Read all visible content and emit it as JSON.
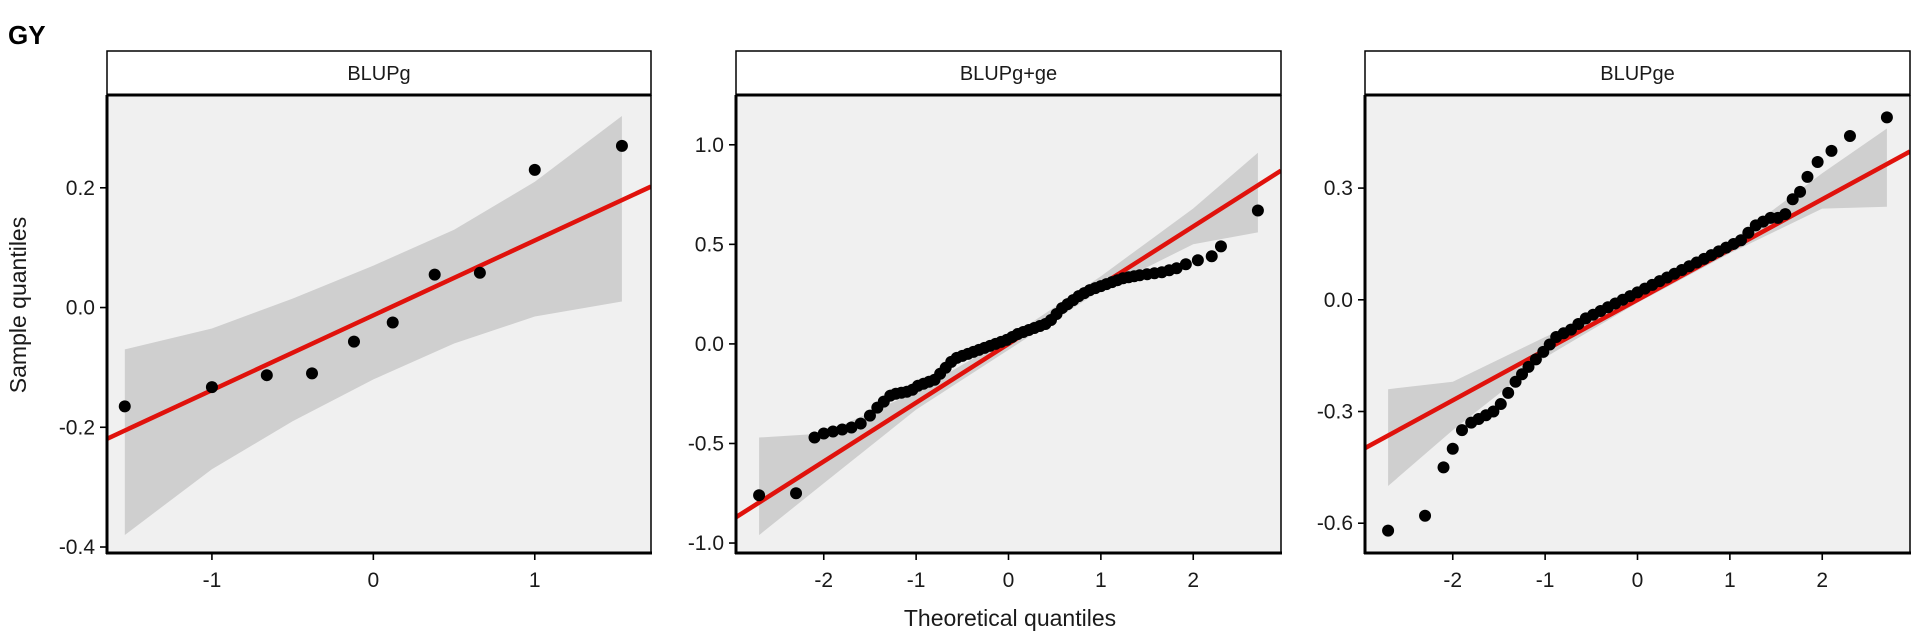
{
  "figure_title": "GY",
  "x_axis_title": "Theoretical quantiles",
  "y_axis_title": "Sample quantiles",
  "colors": {
    "panel_background": "#f0f0f0",
    "confidence_band": "#cfcfcf",
    "reference_line": "#e0120c",
    "points": "#000000"
  },
  "chart_data": [
    {
      "type": "scatter",
      "title": "BLUPg",
      "xlim": [
        -1.65,
        1.72
      ],
      "ylim": [
        -0.41,
        0.355
      ],
      "x_ticks": [
        -1,
        0,
        1
      ],
      "y_ticks": [
        -0.4,
        -0.2,
        0.0,
        0.2
      ],
      "x_tick_labels": [
        "-1",
        "0",
        "1"
      ],
      "y_tick_labels": [
        "-0.4",
        "-0.2",
        "0.0",
        "0.2"
      ],
      "points": {
        "x": [
          -1.54,
          -1.0,
          -0.66,
          -0.38,
          -0.12,
          0.12,
          0.38,
          0.66,
          1.0,
          1.54
        ],
        "y": [
          -0.165,
          -0.133,
          -0.113,
          -0.11,
          -0.057,
          -0.025,
          0.055,
          0.058,
          0.23,
          0.27
        ]
      },
      "line": {
        "slope": 0.125,
        "intercept": -0.013
      },
      "band": {
        "x": [
          -1.54,
          -1.0,
          -0.5,
          0.0,
          0.5,
          1.0,
          1.54
        ],
        "lower": [
          -0.38,
          -0.27,
          -0.19,
          -0.12,
          -0.06,
          -0.015,
          0.01
        ],
        "upper": [
          -0.07,
          -0.035,
          0.015,
          0.07,
          0.13,
          0.21,
          0.32
        ]
      }
    },
    {
      "type": "scatter",
      "title": "BLUPg+ge",
      "xlim": [
        -2.95,
        2.95
      ],
      "ylim": [
        -1.05,
        1.25
      ],
      "x_ticks": [
        -2,
        -1,
        0,
        1,
        2
      ],
      "y_ticks": [
        -1.0,
        -0.5,
        0.0,
        0.5,
        1.0
      ],
      "x_tick_labels": [
        "-2",
        "-1",
        "0",
        "1",
        "2"
      ],
      "y_tick_labels": [
        "-1.0",
        "-0.5",
        "0.0",
        "0.5",
        "1.0"
      ],
      "points": {
        "x": [
          -2.7,
          -2.3,
          -2.1,
          -2.0,
          -1.9,
          -1.8,
          -1.7,
          -1.6,
          -1.5,
          -1.42,
          -1.35,
          -1.28,
          -1.22,
          -1.16,
          -1.1,
          -1.04,
          -0.98,
          -0.92,
          -0.86,
          -0.8,
          -0.74,
          -0.68,
          -0.62,
          -0.56,
          -0.5,
          -0.44,
          -0.38,
          -0.32,
          -0.26,
          -0.2,
          -0.14,
          -0.08,
          -0.02,
          0.04,
          0.1,
          0.16,
          0.22,
          0.28,
          0.34,
          0.4,
          0.46,
          0.52,
          0.58,
          0.64,
          0.7,
          0.76,
          0.82,
          0.88,
          0.94,
          1.0,
          1.06,
          1.12,
          1.18,
          1.24,
          1.3,
          1.36,
          1.42,
          1.5,
          1.58,
          1.66,
          1.74,
          1.82,
          1.92,
          2.05,
          2.2,
          2.3,
          2.7
        ],
        "y": [
          -0.76,
          -0.75,
          -0.47,
          -0.45,
          -0.44,
          -0.43,
          -0.42,
          -0.4,
          -0.36,
          -0.32,
          -0.29,
          -0.26,
          -0.25,
          -0.245,
          -0.24,
          -0.23,
          -0.21,
          -0.2,
          -0.19,
          -0.18,
          -0.15,
          -0.12,
          -0.09,
          -0.07,
          -0.06,
          -0.05,
          -0.04,
          -0.03,
          -0.02,
          -0.01,
          0.0,
          0.01,
          0.02,
          0.035,
          0.05,
          0.06,
          0.07,
          0.08,
          0.09,
          0.1,
          0.12,
          0.15,
          0.18,
          0.2,
          0.22,
          0.24,
          0.255,
          0.27,
          0.28,
          0.29,
          0.3,
          0.31,
          0.32,
          0.33,
          0.335,
          0.34,
          0.345,
          0.35,
          0.355,
          0.36,
          0.37,
          0.38,
          0.4,
          0.42,
          0.44,
          0.49,
          0.67
        ]
      },
      "line": {
        "slope": 0.295,
        "intercept": 0.0
      },
      "band": {
        "x": [
          -2.7,
          -2.0,
          -1.0,
          0.0,
          1.0,
          2.0,
          2.7
        ],
        "lower": [
          -0.96,
          -0.7,
          -0.33,
          -0.03,
          0.27,
          0.5,
          0.56
        ],
        "upper": [
          -0.47,
          -0.45,
          -0.24,
          0.03,
          0.34,
          0.68,
          0.96
        ]
      }
    },
    {
      "type": "scatter",
      "title": "BLUPge",
      "xlim": [
        -2.95,
        2.95
      ],
      "ylim": [
        -0.68,
        0.55
      ],
      "x_ticks": [
        -2,
        -1,
        0,
        1,
        2
      ],
      "y_ticks": [
        -0.6,
        -0.3,
        0.0,
        0.3
      ],
      "x_tick_labels": [
        "-2",
        "-1",
        "0",
        "1",
        "2"
      ],
      "y_tick_labels": [
        "-0.6",
        "-0.3",
        "0.0",
        "0.3"
      ],
      "points": {
        "x": [
          -2.7,
          -2.3,
          -2.1,
          -2.0,
          -1.9,
          -1.8,
          -1.72,
          -1.64,
          -1.56,
          -1.48,
          -1.4,
          -1.32,
          -1.25,
          -1.18,
          -1.1,
          -1.02,
          -0.95,
          -0.88,
          -0.8,
          -0.72,
          -0.64,
          -0.56,
          -0.48,
          -0.4,
          -0.32,
          -0.24,
          -0.16,
          -0.08,
          0.0,
          0.08,
          0.16,
          0.24,
          0.32,
          0.4,
          0.48,
          0.56,
          0.64,
          0.72,
          0.8,
          0.88,
          0.96,
          1.04,
          1.12,
          1.2,
          1.28,
          1.36,
          1.44,
          1.52,
          1.6,
          1.68,
          1.76,
          1.84,
          1.95,
          2.1,
          2.3,
          2.7
        ],
        "y": [
          -0.62,
          -0.58,
          -0.45,
          -0.4,
          -0.35,
          -0.33,
          -0.32,
          -0.31,
          -0.3,
          -0.28,
          -0.25,
          -0.22,
          -0.2,
          -0.18,
          -0.16,
          -0.14,
          -0.12,
          -0.1,
          -0.09,
          -0.08,
          -0.065,
          -0.05,
          -0.04,
          -0.03,
          -0.02,
          -0.01,
          0.0,
          0.01,
          0.02,
          0.03,
          0.04,
          0.05,
          0.06,
          0.07,
          0.08,
          0.09,
          0.1,
          0.11,
          0.12,
          0.13,
          0.14,
          0.15,
          0.16,
          0.18,
          0.2,
          0.21,
          0.22,
          0.22,
          0.23,
          0.27,
          0.29,
          0.33,
          0.37,
          0.4,
          0.44,
          0.49
        ]
      },
      "line": {
        "slope": 0.135,
        "intercept": 0.0
      },
      "band": {
        "x": [
          -2.7,
          -2.0,
          -1.0,
          0.0,
          1.0,
          2.0,
          2.7
        ],
        "lower": [
          -0.5,
          -0.35,
          -0.155,
          -0.008,
          0.125,
          0.245,
          0.25
        ],
        "upper": [
          -0.24,
          -0.22,
          -0.1,
          0.008,
          0.155,
          0.34,
          0.46
        ]
      }
    }
  ]
}
